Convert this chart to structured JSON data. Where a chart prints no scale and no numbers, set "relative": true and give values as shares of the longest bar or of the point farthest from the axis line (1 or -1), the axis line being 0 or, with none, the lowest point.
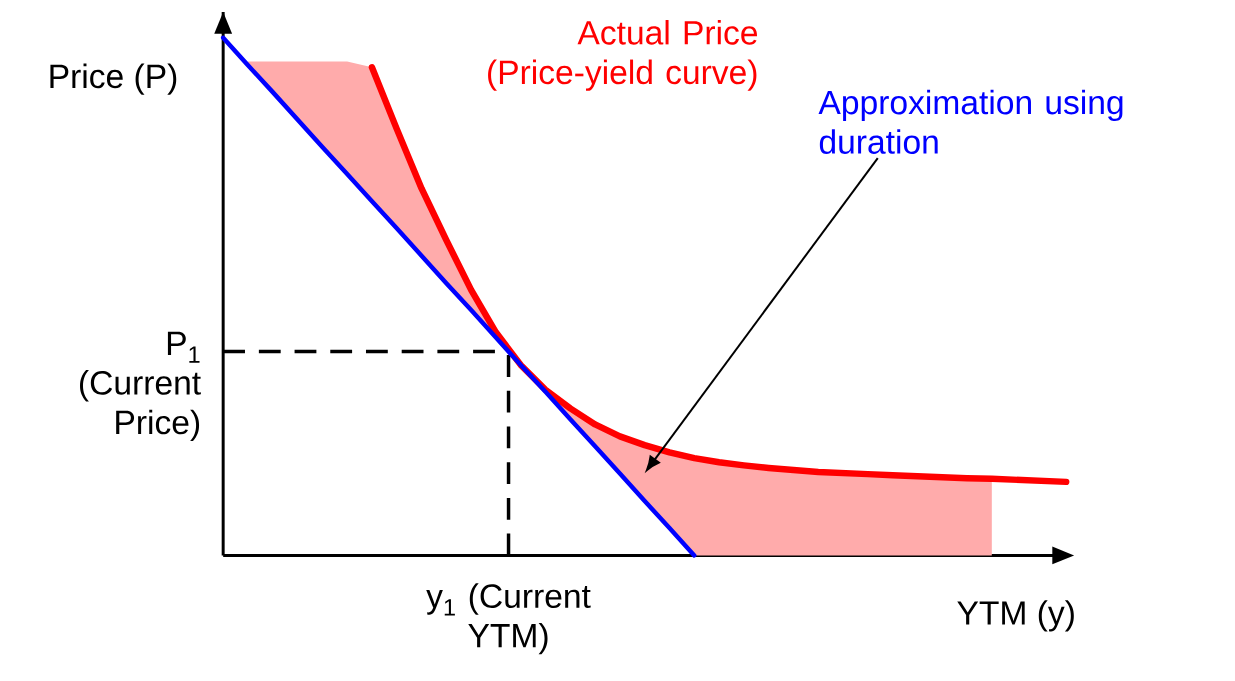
{
  "chart_data": {
    "type": "line",
    "relative": true,
    "xlabel": "YTM (y)",
    "ylabel": "Price (P)",
    "categories": [
      null,
      null,
      null,
      null,
      null,
      null,
      null,
      null,
      null,
      null,
      null,
      null,
      null,
      null,
      null,
      null,
      null,
      null,
      null,
      null,
      null,
      null,
      null,
      null,
      null,
      null,
      null,
      null,
      null,
      null,
      null,
      null,
      null,
      null,
      null
    ],
    "series": [
      {
        "name": "Actual Price (Price-yield curve)",
        "color": "#ff0000",
        "values": [
          null,
          null,
          null,
          null,
          null,
          null,
          0.943,
          0.824,
          0.709,
          0.609,
          0.513,
          0.431,
          0.368,
          0.32,
          0.284,
          0.253,
          0.23,
          0.213,
          0.199,
          0.188,
          0.18,
          0.174,
          0.169,
          0.165,
          0.161,
          0.159,
          0.157,
          0.155,
          0.153,
          0.151,
          0.149,
          0.148,
          0.146,
          0.144,
          0.142
        ],
        "upper": [
          null,
          0.954,
          0.954,
          0.954,
          0.954,
          0.954,
          0.943,
          0.824,
          0.709,
          0.609,
          0.513,
          0.431,
          0.368,
          0.32,
          0.284,
          0.253,
          0.23,
          0.213,
          0.199,
          0.188,
          0.18,
          0.174,
          0.169,
          0.165,
          0.161,
          0.159,
          0.157,
          0.155,
          0.153,
          0.151,
          0.149,
          0.148,
          null,
          null,
          null
        ],
        "lower": [
          null,
          0.947,
          0.895,
          0.842,
          0.789,
          0.737,
          0.684,
          0.632,
          0.579,
          0.526,
          0.474,
          0.421,
          0.368,
          0.316,
          0.263,
          0.211,
          0.158,
          0.105,
          0.053,
          0,
          0,
          0,
          0,
          0,
          0,
          0,
          0,
          0,
          0,
          0,
          0,
          0,
          null,
          null,
          null
        ]
      },
      {
        "name": "Approximation using duration",
        "color": "#0000ff",
        "values": [
          1,
          0.947,
          0.895,
          0.842,
          0.789,
          0.737,
          0.684,
          0.632,
          0.579,
          0.526,
          0.474,
          0.421,
          0.368,
          0.316,
          0.263,
          0.211,
          0.158,
          0.105,
          0.053,
          0,
          null,
          null,
          null,
          null,
          null,
          null,
          null,
          null,
          null,
          null,
          null,
          null,
          null,
          null,
          null
        ]
      }
    ],
    "ref_lines": [
      {
        "axis": "y",
        "value": 0.394,
        "label": "P$_{1}$ (Current Price)",
        "line_style": "dashed"
      }
    ],
    "annotations": [
      "y$_{1}$ (Current YTM)"
    ]
  }
}
